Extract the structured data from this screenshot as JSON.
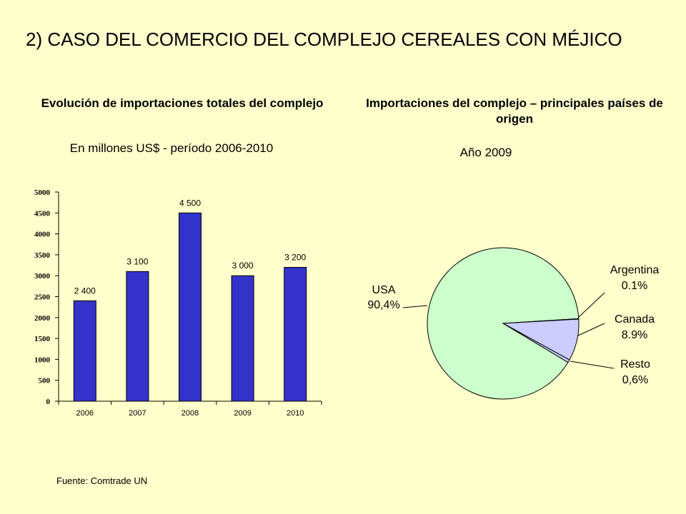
{
  "slide": {
    "title": "2) CASO DEL COMERCIO DEL COMPLEJO CEREALES CON MÉJICO",
    "source": "Fuente: Comtrade  UN"
  },
  "chart_data": [
    {
      "type": "bar",
      "title": "Evolución de importaciones totales del complejo",
      "subtitle": "En millones US$ - período 2006-2010",
      "categories": [
        "2006",
        "2007",
        "2008",
        "2009",
        "2010"
      ],
      "values": [
        2400,
        3100,
        4500,
        3000,
        3200
      ],
      "data_labels": [
        "2 400",
        "3 100",
        "4 500",
        "3 000",
        "3 200"
      ],
      "ylim": [
        0,
        5000
      ],
      "yticks": [
        0,
        500,
        1000,
        1500,
        2000,
        2500,
        3000,
        3500,
        4000,
        4500,
        5000
      ],
      "bar_color": "#3333CC",
      "grid": false
    },
    {
      "type": "pie",
      "title": "Importaciones del complejo – principales países de origen",
      "subtitle": "Año 2009",
      "slices": [
        {
          "name": "USA",
          "label": "90,4%",
          "value": 90.4,
          "color": "#CCFFCC"
        },
        {
          "name": "Argentina",
          "label": "0.1%",
          "value": 0.1,
          "color": "#CCFFCC"
        },
        {
          "name": "Canada",
          "label": "8.9%",
          "value": 8.9,
          "color": "#CCCCFF"
        },
        {
          "name": "Resto",
          "label": "0,6%",
          "value": 0.6,
          "color": "#CCCCFF"
        }
      ]
    }
  ]
}
